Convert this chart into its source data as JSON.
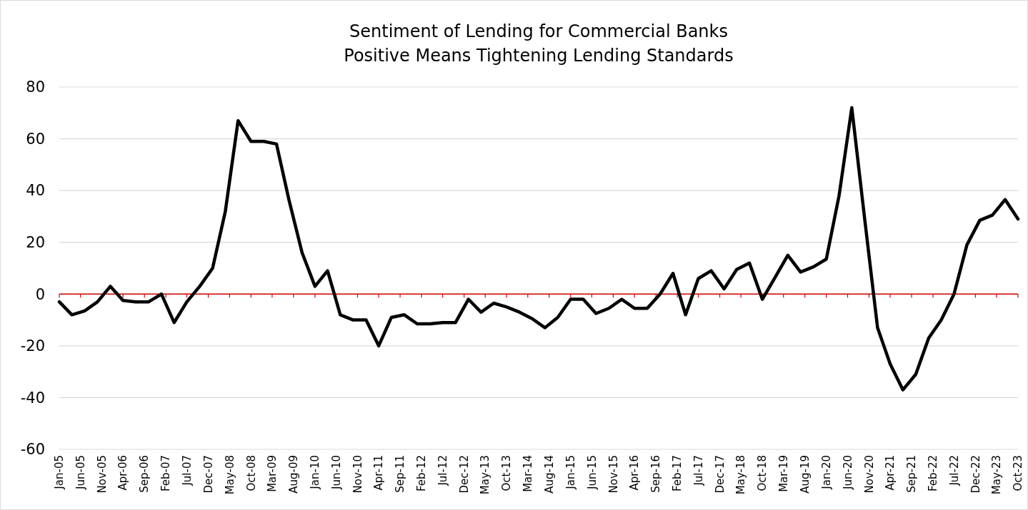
{
  "chart_data": {
    "type": "line",
    "title": "Sentiment of Lending for Commercial Banks",
    "subtitle": "Positive Means Tightening Lending Standards",
    "x": [
      "2005-01",
      "2005-04",
      "2005-07",
      "2005-10",
      "2006-01",
      "2006-04",
      "2006-07",
      "2006-10",
      "2007-01",
      "2007-04",
      "2007-07",
      "2007-10",
      "2008-01",
      "2008-04",
      "2008-07",
      "2008-10",
      "2009-01",
      "2009-04",
      "2009-07",
      "2009-10",
      "2010-01",
      "2010-04",
      "2010-07",
      "2010-10",
      "2011-01",
      "2011-04",
      "2011-07",
      "2011-10",
      "2012-01",
      "2012-04",
      "2012-07",
      "2012-10",
      "2013-01",
      "2013-04",
      "2013-07",
      "2013-10",
      "2014-01",
      "2014-04",
      "2014-07",
      "2014-10",
      "2015-01",
      "2015-04",
      "2015-07",
      "2015-10",
      "2016-01",
      "2016-04",
      "2016-07",
      "2016-10",
      "2017-01",
      "2017-04",
      "2017-07",
      "2017-10",
      "2018-01",
      "2018-04",
      "2018-07",
      "2018-10",
      "2019-01",
      "2019-04",
      "2019-07",
      "2019-10",
      "2020-01",
      "2020-04",
      "2020-07",
      "2020-10",
      "2021-01",
      "2021-04",
      "2021-07",
      "2021-10",
      "2022-01",
      "2022-04",
      "2022-07",
      "2022-10",
      "2023-01",
      "2023-04",
      "2023-07",
      "2023-10"
    ],
    "series": [
      {
        "color": "#000000",
        "values": [
          -3,
          -8,
          -6.5,
          -3,
          3,
          -2.5,
          -3,
          -3,
          0,
          -11,
          -3,
          3,
          10,
          32,
          67,
          59,
          59,
          58,
          36,
          16,
          3,
          9,
          -8,
          -10,
          -10,
          -20,
          -9,
          -8,
          -11.5,
          -11.5,
          -11,
          -11,
          -2,
          -7,
          -3.5,
          -5,
          -7,
          -9.5,
          -13,
          -9,
          -2,
          -2,
          -7.5,
          -5.5,
          -2,
          -5.5,
          -5.5,
          0,
          8,
          -8,
          6,
          9,
          2,
          9.5,
          12,
          -2,
          6.5,
          15,
          8.5,
          10.5,
          13.5,
          38,
          72,
          29,
          -13,
          -27,
          -37,
          -31,
          -17,
          -10,
          0,
          19,
          28.5,
          30.5,
          36.5,
          29
        ]
      }
    ],
    "xlim": [
      "2005-01",
      "2023-10"
    ],
    "xticks": [
      {
        "value": "2005-01",
        "label": "Jan-05"
      },
      {
        "value": "2005-06",
        "label": "Jun-05"
      },
      {
        "value": "2005-11",
        "label": "Nov-05"
      },
      {
        "value": "2006-04",
        "label": "Apr-06"
      },
      {
        "value": "2006-09",
        "label": "Sep-06"
      },
      {
        "value": "2007-02",
        "label": "Feb-07"
      },
      {
        "value": "2007-07",
        "label": "Jul-07"
      },
      {
        "value": "2007-12",
        "label": "Dec-07"
      },
      {
        "value": "2008-05",
        "label": "May-08"
      },
      {
        "value": "2008-10",
        "label": "Oct-08"
      },
      {
        "value": "2009-03",
        "label": "Mar-09"
      },
      {
        "value": "2009-08",
        "label": "Aug-09"
      },
      {
        "value": "2010-01",
        "label": "Jan-10"
      },
      {
        "value": "2010-06",
        "label": "Jun-10"
      },
      {
        "value": "2010-11",
        "label": "Nov-10"
      },
      {
        "value": "2011-04",
        "label": "Apr-11"
      },
      {
        "value": "2011-09",
        "label": "Sep-11"
      },
      {
        "value": "2012-02",
        "label": "Feb-12"
      },
      {
        "value": "2012-07",
        "label": "Jul-12"
      },
      {
        "value": "2012-12",
        "label": "Dec-12"
      },
      {
        "value": "2013-05",
        "label": "May-13"
      },
      {
        "value": "2013-10",
        "label": "Oct-13"
      },
      {
        "value": "2014-03",
        "label": "Mar-14"
      },
      {
        "value": "2014-08",
        "label": "Aug-14"
      },
      {
        "value": "2015-01",
        "label": "Jan-15"
      },
      {
        "value": "2015-06",
        "label": "Jun-15"
      },
      {
        "value": "2015-11",
        "label": "Nov-15"
      },
      {
        "value": "2016-04",
        "label": "Apr-16"
      },
      {
        "value": "2016-09",
        "label": "Sep-16"
      },
      {
        "value": "2017-02",
        "label": "Feb-17"
      },
      {
        "value": "2017-07",
        "label": "Jul-17"
      },
      {
        "value": "2017-12",
        "label": "Dec-17"
      },
      {
        "value": "2018-05",
        "label": "May-18"
      },
      {
        "value": "2018-10",
        "label": "Oct-18"
      },
      {
        "value": "2019-03",
        "label": "Mar-19"
      },
      {
        "value": "2019-08",
        "label": "Aug-19"
      },
      {
        "value": "2020-01",
        "label": "Jan-20"
      },
      {
        "value": "2020-06",
        "label": "Jun-20"
      },
      {
        "value": "2020-11",
        "label": "Nov-20"
      },
      {
        "value": "2021-04",
        "label": "Apr-21"
      },
      {
        "value": "2021-09",
        "label": "Sep-21"
      },
      {
        "value": "2022-02",
        "label": "Feb-22"
      },
      {
        "value": "2022-07",
        "label": "Jul-22"
      },
      {
        "value": "2022-12",
        "label": "Dec-22"
      },
      {
        "value": "2023-05",
        "label": "May-23"
      },
      {
        "value": "2023-10",
        "label": "Oct-23"
      }
    ],
    "ylim": [
      -60,
      80
    ],
    "yticks": [
      -60,
      -40,
      -20,
      0,
      20,
      40,
      60,
      80
    ],
    "grid": "y",
    "ref_lines": [
      {
        "axis": "y",
        "value": 0,
        "color": "#d00000"
      }
    ]
  }
}
